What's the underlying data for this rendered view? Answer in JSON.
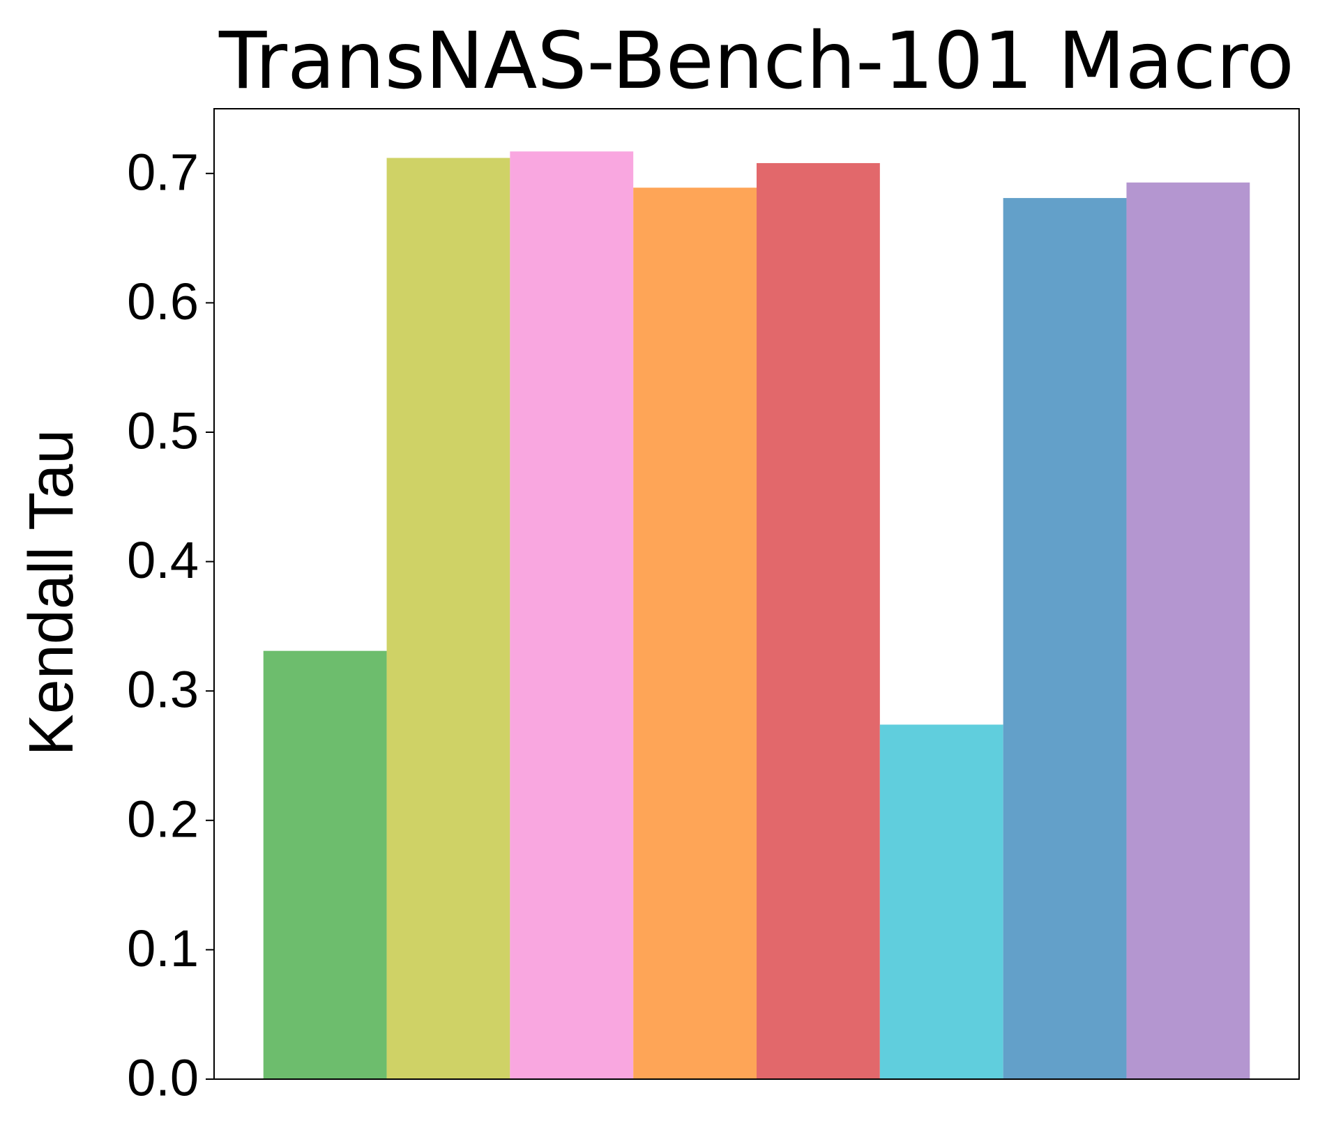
{
  "chart_data": {
    "type": "bar",
    "title": "TransNAS-Bench-101 Macro",
    "y_label": "Kendall Tau",
    "values": [
      0.331,
      0.712,
      0.717,
      0.689,
      0.708,
      0.274,
      0.681,
      0.693
    ],
    "colors": [
      "#6dbd6d",
      "#cfd266",
      "#f9a7e0",
      "#fea557",
      "#e2686b",
      "#60cedd",
      "#63a0c9",
      "#b496d0"
    ],
    "ylim": [
      0,
      0.75
    ],
    "yticks": [
      {
        "value": 0,
        "label": "0.0"
      },
      0.1,
      0.2,
      0.3,
      0.4,
      0.5,
      0.6,
      0.7
    ],
    "grid": false
  }
}
